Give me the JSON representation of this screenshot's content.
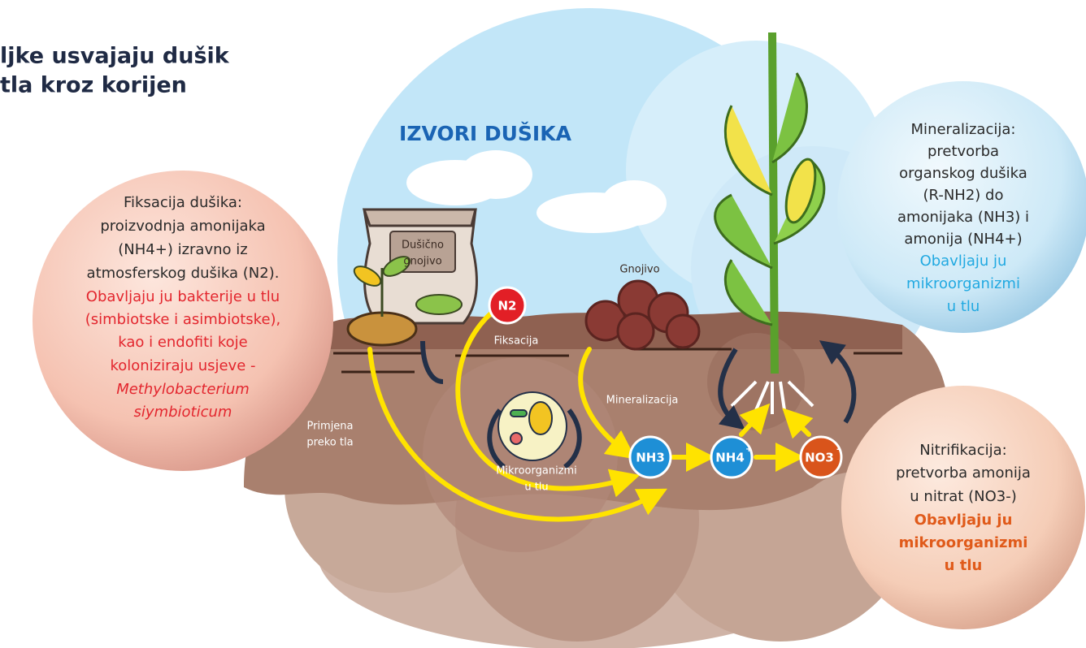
{
  "header": {
    "title_lines": [
      "ljke usvajaju dušik",
      "tla kroz korijen"
    ]
  },
  "sources_title": "IZVORI DUŠIKA",
  "fixation_note": {
    "lines": [
      "Fiksacija dušika:",
      "proizvodnja amonijaka",
      "(NH4+) izravno iz",
      "atmosferskog dušika (N2)."
    ],
    "highlight_lines": [
      "Obavljaju ju bakterije u tlu",
      "(simbiotske i asimbiotske),",
      "kao i endofiti koje",
      "koloniziraju usjeve -"
    ],
    "species_lines": [
      "Methylobacterium",
      "siymbioticum"
    ]
  },
  "mineralization_note": {
    "lines": [
      "Mineralizacija:",
      "pretvorba",
      "organskog dušika",
      "(R-NH2) do",
      "amonijaka (NH3) i",
      "amonija (NH4+)"
    ],
    "highlight_lines": [
      "Obavljaju ju",
      "mikroorganizmi",
      "u tlu"
    ]
  },
  "nitrification_note": {
    "lines": [
      "Nitrifikacija:",
      "pretvorba amonija",
      "u nitrat (NO3-)"
    ],
    "highlight_lines": [
      "Obavljaju ju",
      "mikroorganizmi",
      "u tlu"
    ]
  },
  "labels": {
    "fertilizer_bag": [
      "Dušično",
      "gnojivo"
    ],
    "manure": "Gnojivo",
    "fixation": "Fiksacija",
    "mineralization": "Mineralizacija",
    "soil_application": [
      "Primjena",
      "preko tla"
    ],
    "microorganisms": [
      "Mikroorganizmi",
      "u tlu"
    ]
  },
  "compounds": {
    "n2": "N2",
    "nh3": "NH3",
    "nh4": "NH4",
    "nh4_charge": "+",
    "no3": "NO3",
    "no3_charge": "-"
  }
}
